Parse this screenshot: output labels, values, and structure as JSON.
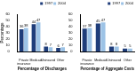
{
  "chart_data": [
    {
      "type": "bar",
      "x_label": "Percentage of Discharges",
      "y_label": "Percentage",
      "categories": [
        "Private insurance",
        "Medicaid",
        "Uninsured",
        "Other"
      ],
      "series": [
        {
          "name": "1997",
          "color": "#1f3d7a",
          "values": [
            36,
            44,
            8,
            6
          ]
        },
        {
          "name": "2004",
          "color": "#9dc3e6",
          "values": [
            38,
            47,
            7,
            7
          ]
        }
      ],
      "ylim": [
        0,
        60
      ],
      "yticks": [
        0,
        10,
        20,
        30,
        40,
        50,
        60
      ],
      "legend": "upper right",
      "data_labels": true,
      "grid": false
    },
    {
      "type": "bar",
      "x_label": "Percentage of Aggregate Costs",
      "categories": [
        "Private insurance",
        "Medicaid",
        "Uninsured",
        "Other"
      ],
      "series": [
        {
          "name": "1997",
          "color": "#1f3d7a",
          "values": [
            37,
            45,
            8,
            5
          ]
        },
        {
          "name": "2004",
          "color": "#9dc3e6",
          "values": [
            38,
            47,
            8,
            5
          ]
        }
      ],
      "ylim": [
        0,
        60
      ],
      "yticks": [
        0,
        10,
        20,
        30,
        40,
        50,
        60
      ],
      "legend": "upper right",
      "data_labels": true,
      "grid": false
    }
  ]
}
